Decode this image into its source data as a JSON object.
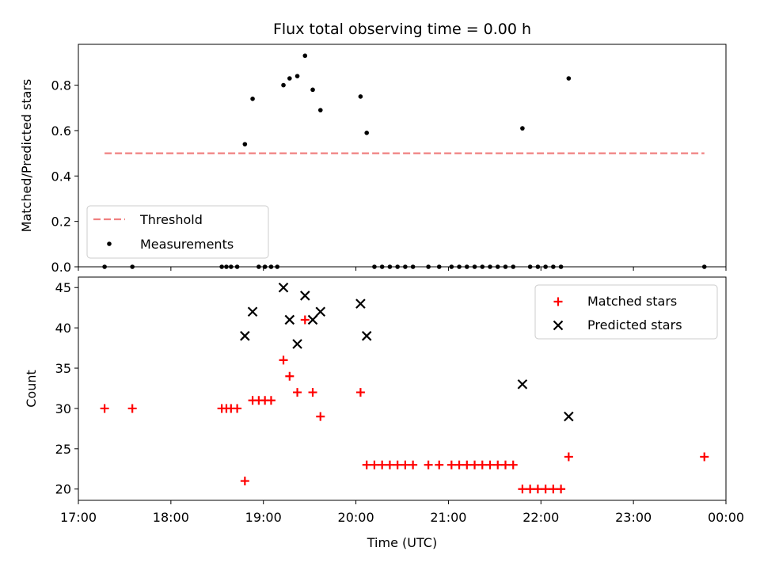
{
  "chart_data": [
    {
      "type": "scatter",
      "title": "Flux total observing time = 0.00 h",
      "ylabel": "Matched/Predicted stars",
      "xlim": [
        "17:00",
        "00:00"
      ],
      "ylim": [
        0,
        0.98
      ],
      "y_ticks": [
        "0.0",
        "0.2",
        "0.4",
        "0.6",
        "0.8"
      ],
      "legend_position": "lower-left",
      "threshold": {
        "name": "Threshold",
        "y": 0.5,
        "x_range": [
          "17:17",
          "23:46"
        ],
        "color": "#f08080",
        "style": "dashed"
      },
      "series": [
        {
          "name": "Measurements",
          "color": "#000000",
          "marker": "dot",
          "points": [
            [
              "17:17",
              0.0
            ],
            [
              "17:35",
              0.0
            ],
            [
              "18:33",
              0.0
            ],
            [
              "18:36",
              0.0
            ],
            [
              "18:39",
              0.0
            ],
            [
              "18:43",
              0.0
            ],
            [
              "18:48",
              0.54
            ],
            [
              "18:53",
              0.74
            ],
            [
              "18:57",
              0.0
            ],
            [
              "19:01",
              0.0
            ],
            [
              "19:05",
              0.0
            ],
            [
              "19:09",
              0.0
            ],
            [
              "19:13",
              0.8
            ],
            [
              "19:17",
              0.83
            ],
            [
              "19:22",
              0.84
            ],
            [
              "19:27",
              0.93
            ],
            [
              "19:32",
              0.78
            ],
            [
              "19:37",
              0.69
            ],
            [
              "20:03",
              0.75
            ],
            [
              "20:07",
              0.59
            ],
            [
              "20:12",
              0.0
            ],
            [
              "20:17",
              0.0
            ],
            [
              "20:22",
              0.0
            ],
            [
              "20:27",
              0.0
            ],
            [
              "20:32",
              0.0
            ],
            [
              "20:37",
              0.0
            ],
            [
              "20:47",
              0.0
            ],
            [
              "20:54",
              0.0
            ],
            [
              "21:02",
              0.0
            ],
            [
              "21:07",
              0.0
            ],
            [
              "21:12",
              0.0
            ],
            [
              "21:17",
              0.0
            ],
            [
              "21:22",
              0.0
            ],
            [
              "21:27",
              0.0
            ],
            [
              "21:32",
              0.0
            ],
            [
              "21:37",
              0.0
            ],
            [
              "21:42",
              0.0
            ],
            [
              "21:48",
              0.61
            ],
            [
              "21:53",
              0.0
            ],
            [
              "21:58",
              0.0
            ],
            [
              "22:03",
              0.0
            ],
            [
              "22:08",
              0.0
            ],
            [
              "22:13",
              0.0
            ],
            [
              "22:18",
              0.83
            ],
            [
              "23:46",
              0.0
            ]
          ]
        }
      ]
    },
    {
      "type": "scatter",
      "xlabel": "Time (UTC)",
      "ylabel": "Count",
      "xlim": [
        "17:00",
        "00:00"
      ],
      "ylim": [
        18.6,
        46.3
      ],
      "x_ticks": [
        "17:00",
        "18:00",
        "19:00",
        "20:00",
        "21:00",
        "22:00",
        "23:00",
        "00:00"
      ],
      "y_ticks": [
        "20",
        "25",
        "30",
        "35",
        "40",
        "45"
      ],
      "legend_position": "upper-right",
      "series": [
        {
          "name": "Matched stars",
          "color": "#ff0000",
          "marker": "plus",
          "points": [
            [
              "17:17",
              30
            ],
            [
              "17:35",
              30
            ],
            [
              "18:33",
              30
            ],
            [
              "18:36",
              30
            ],
            [
              "18:39",
              30
            ],
            [
              "18:43",
              30
            ],
            [
              "18:48",
              21
            ],
            [
              "18:53",
              31
            ],
            [
              "18:57",
              31
            ],
            [
              "19:01",
              31
            ],
            [
              "19:05",
              31
            ],
            [
              "19:13",
              36
            ],
            [
              "19:17",
              34
            ],
            [
              "19:22",
              32
            ],
            [
              "19:27",
              41
            ],
            [
              "19:32",
              32
            ],
            [
              "19:37",
              29
            ],
            [
              "20:03",
              32
            ],
            [
              "20:07",
              23
            ],
            [
              "20:12",
              23
            ],
            [
              "20:17",
              23
            ],
            [
              "20:22",
              23
            ],
            [
              "20:27",
              23
            ],
            [
              "20:32",
              23
            ],
            [
              "20:37",
              23
            ],
            [
              "20:47",
              23
            ],
            [
              "20:54",
              23
            ],
            [
              "21:02",
              23
            ],
            [
              "21:07",
              23
            ],
            [
              "21:12",
              23
            ],
            [
              "21:17",
              23
            ],
            [
              "21:22",
              23
            ],
            [
              "21:27",
              23
            ],
            [
              "21:32",
              23
            ],
            [
              "21:37",
              23
            ],
            [
              "21:42",
              23
            ],
            [
              "21:48",
              20
            ],
            [
              "21:53",
              20
            ],
            [
              "21:58",
              20
            ],
            [
              "22:03",
              20
            ],
            [
              "22:08",
              20
            ],
            [
              "22:13",
              20
            ],
            [
              "22:18",
              24
            ],
            [
              "23:46",
              24
            ]
          ]
        },
        {
          "name": "Predicted stars",
          "color": "#000000",
          "marker": "x",
          "points": [
            [
              "18:48",
              39
            ],
            [
              "18:53",
              42
            ],
            [
              "19:13",
              45
            ],
            [
              "19:17",
              41
            ],
            [
              "19:22",
              38
            ],
            [
              "19:27",
              44
            ],
            [
              "19:32",
              41
            ],
            [
              "19:37",
              42
            ],
            [
              "20:03",
              43
            ],
            [
              "20:07",
              39
            ],
            [
              "21:48",
              33
            ],
            [
              "22:18",
              29
            ]
          ]
        }
      ]
    }
  ]
}
